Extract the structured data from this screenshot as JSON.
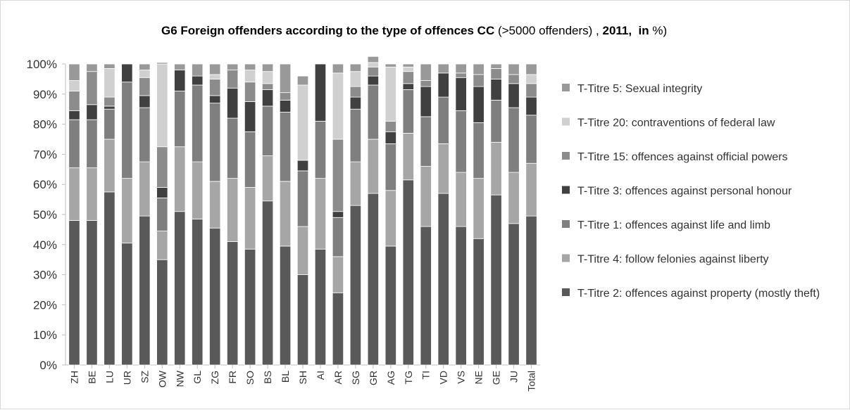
{
  "chart_data": {
    "type": "bar",
    "stacked": true,
    "title_parts": [
      {
        "text": "G6 Foreign offenders according to the type of offences CC ",
        "bold": true
      },
      {
        "text": "(>5000 offenders) , ",
        "bold": false
      },
      {
        "text": "2011,  in ",
        "bold": true
      },
      {
        "text": "%)",
        "bold": false
      }
    ],
    "y_ticks": [
      "0%",
      "10%",
      "20%",
      "30%",
      "40%",
      "50%",
      "60%",
      "70%",
      "80%",
      "90%",
      "100%"
    ],
    "ylim": [
      0,
      100
    ],
    "grid": false,
    "legend_position": "right",
    "categories": [
      "ZH",
      "BE",
      "LU",
      "UR",
      "SZ",
      "OW",
      "NW",
      "GL",
      "ZG",
      "FR",
      "SO",
      "BS",
      "BL",
      "SH",
      "AI",
      "AR",
      "SG",
      "GR",
      "AG",
      "TG",
      "TI",
      "VD",
      "VS",
      "NE",
      "GE",
      "JU",
      "Total"
    ],
    "series": [
      {
        "name": "T-Titre 2: offences against property (mostly theft)",
        "color": "#595959",
        "values": [
          48,
          48,
          57.5,
          40.5,
          49.5,
          35,
          51,
          48.5,
          45.5,
          41,
          38.5,
          54.5,
          39.5,
          30,
          38.5,
          24,
          53,
          57,
          39.5,
          61.5,
          46,
          57,
          46,
          42,
          56.5,
          47,
          49.5
        ]
      },
      {
        "name": "T-Titre 4: follow felonies against liberty",
        "color": "#a6a6a6",
        "values": [
          17.5,
          17.5,
          17.5,
          21.5,
          18,
          9.5,
          21.5,
          19,
          15.5,
          21,
          20.5,
          15,
          21.5,
          16,
          23.5,
          12,
          14.5,
          18,
          18.5,
          15.5,
          20,
          16.5,
          18,
          20,
          17.5,
          17,
          17.5
        ]
      },
      {
        "name": "T-Titre 1: offences against life and limb",
        "color": "#7f7f7f",
        "values": [
          16,
          16,
          10,
          32,
          18,
          11,
          18.5,
          25.5,
          26,
          20,
          18.5,
          16.5,
          23,
          18.5,
          19,
          13,
          17.5,
          18,
          15.5,
          14.5,
          16.5,
          15.5,
          20.5,
          18.5,
          14,
          21.5,
          16
        ]
      },
      {
        "name": "T-Titre 3: offences against personal honour",
        "color": "#404040",
        "values": [
          3,
          5,
          1,
          6,
          4,
          3.5,
          7,
          3,
          2.5,
          10,
          10,
          5.5,
          4,
          3.5,
          19,
          2,
          4,
          3,
          4,
          2,
          10,
          8,
          11,
          12,
          7,
          8,
          6
        ]
      },
      {
        "name": "T-Titre 15: offences against official powers",
        "color": "#8c8c8c",
        "values": [
          6.5,
          11,
          3,
          0,
          6,
          13.5,
          0,
          0,
          5.5,
          6,
          6.5,
          2,
          2.5,
          0,
          0,
          24,
          3.5,
          3,
          3.5,
          4,
          2,
          0,
          1.5,
          4,
          3.5,
          3,
          4.5
        ]
      },
      {
        "name": "T-Titre 20: contraventions of federal law",
        "color": "#d0d0d0",
        "values": [
          3.5,
          0,
          9.5,
          0,
          2.5,
          27.5,
          0,
          0,
          1.5,
          0,
          4,
          4,
          0,
          25,
          0,
          22,
          5,
          1.5,
          18,
          1.5,
          0,
          0,
          0,
          0,
          0,
          0,
          3
        ]
      },
      {
        "name": "T-Titre 5: Sexual integrity",
        "color": "#999999",
        "values": [
          5.5,
          2.5,
          1.5,
          0,
          2,
          0.5,
          2,
          4,
          3.5,
          2,
          2,
          2.5,
          9.5,
          3,
          0,
          3,
          2.5,
          2,
          1,
          1,
          5.5,
          3,
          3,
          3.5,
          1.5,
          3.5,
          3.5
        ]
      }
    ],
    "legend_order": [
      6,
      5,
      4,
      3,
      2,
      1,
      0
    ]
  }
}
